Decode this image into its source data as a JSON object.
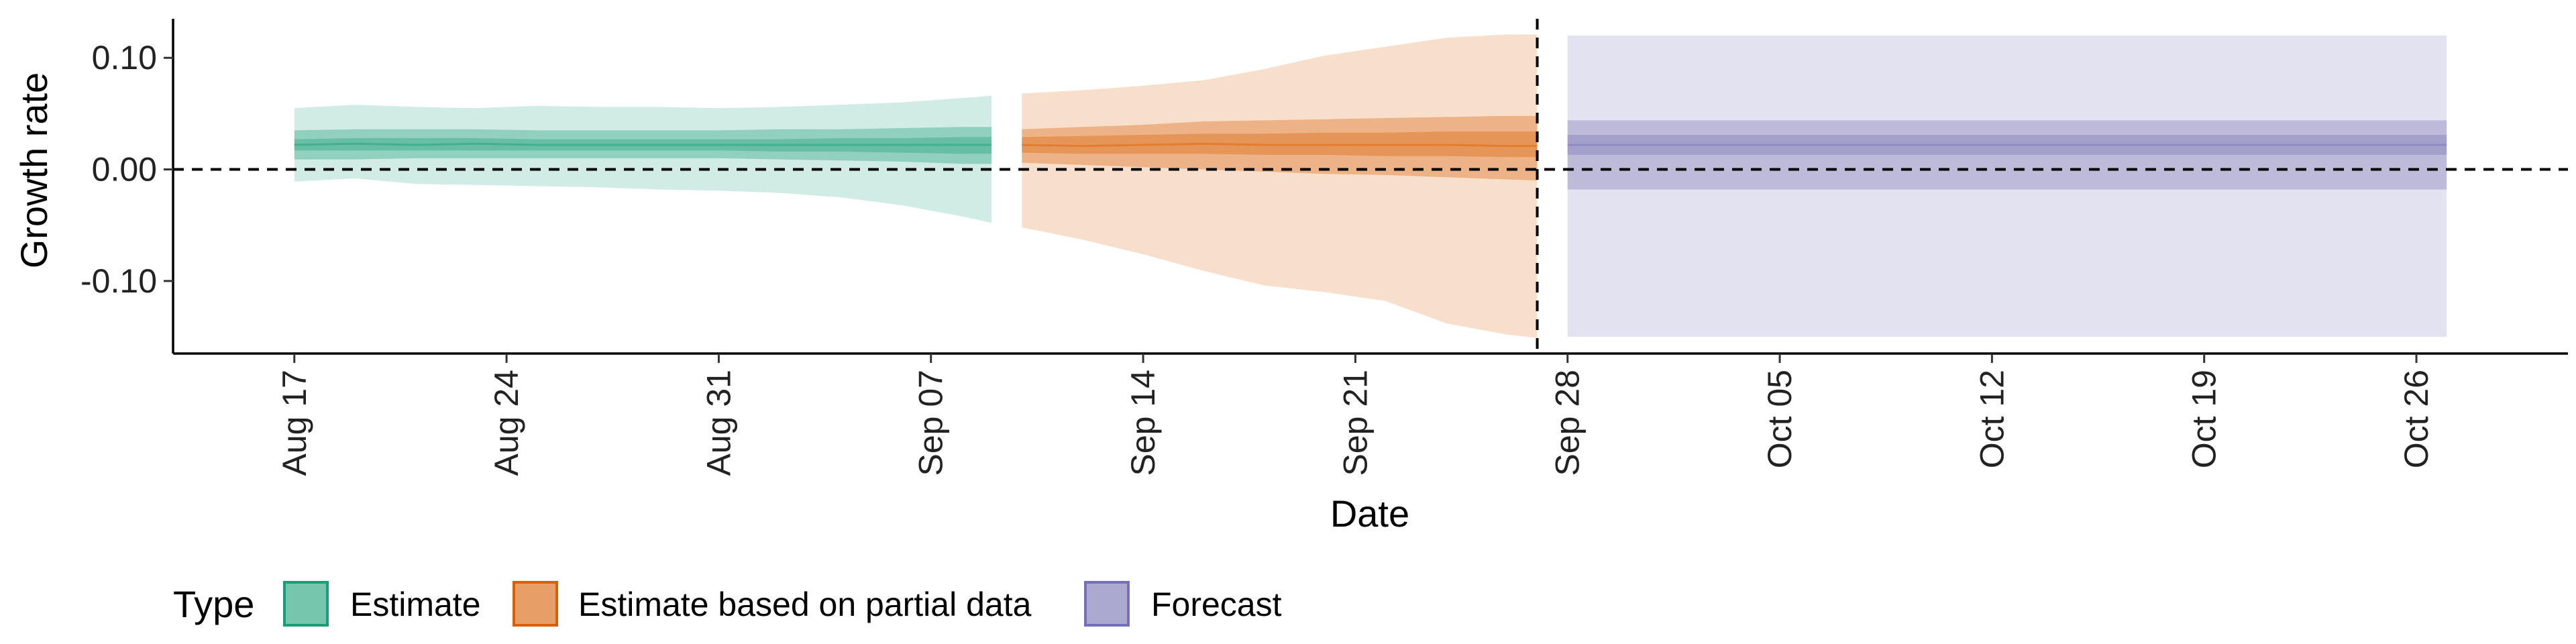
{
  "chart_data": {
    "type": "area",
    "xlabel": "Date",
    "ylabel": "Growth rate",
    "x_ticks": [
      "2020-08-17",
      "2020-08-24",
      "2020-08-31",
      "2020-09-07",
      "2020-09-14",
      "2020-09-21",
      "2020-09-28",
      "2020-10-05",
      "2020-10-12",
      "2020-10-19",
      "2020-10-26"
    ],
    "x_tick_labels": [
      "Aug 17",
      "Aug 24",
      "Aug 31",
      "Sep 07",
      "Sep 14",
      "Sep 21",
      "Sep 28",
      "Oct 05",
      "Oct 12",
      "Oct 19",
      "Oct 26"
    ],
    "y_ticks": [
      0.1,
      0.0,
      -0.1
    ],
    "y_tick_labels": [
      "0.10",
      "0.00",
      "-0.10"
    ],
    "xlim": [
      "2020-08-13",
      "2020-10-31"
    ],
    "ylim": [
      -0.165,
      0.135
    ],
    "hline_y": 0.0,
    "vline_x": "2020-09-27",
    "grid": false,
    "legend_title": "Type",
    "legend_position": "bottom-left",
    "series": [
      {
        "name": "Estimate",
        "color": "#1b9e77",
        "x": [
          "2020-08-17",
          "2020-08-19",
          "2020-08-21",
          "2020-08-23",
          "2020-08-25",
          "2020-08-27",
          "2020-08-29",
          "2020-08-31",
          "2020-09-02",
          "2020-09-04",
          "2020-09-06",
          "2020-09-08",
          "2020-09-09"
        ],
        "median": [
          0.022,
          0.023,
          0.022,
          0.023,
          0.022,
          0.022,
          0.022,
          0.022,
          0.022,
          0.022,
          0.022,
          0.022,
          0.022
        ],
        "inner_lower": [
          0.017,
          0.017,
          0.017,
          0.017,
          0.017,
          0.017,
          0.017,
          0.017,
          0.016,
          0.016,
          0.015,
          0.014,
          0.014
        ],
        "inner_upper": [
          0.027,
          0.028,
          0.028,
          0.028,
          0.027,
          0.027,
          0.027,
          0.027,
          0.027,
          0.028,
          0.028,
          0.029,
          0.029
        ],
        "mid_lower": [
          0.009,
          0.009,
          0.01,
          0.01,
          0.01,
          0.01,
          0.01,
          0.01,
          0.009,
          0.008,
          0.007,
          0.005,
          0.005
        ],
        "mid_upper": [
          0.035,
          0.036,
          0.036,
          0.036,
          0.035,
          0.035,
          0.035,
          0.035,
          0.036,
          0.036,
          0.037,
          0.038,
          0.038
        ],
        "outer_lower": [
          -0.011,
          -0.008,
          -0.013,
          -0.014,
          -0.015,
          -0.016,
          -0.018,
          -0.019,
          -0.021,
          -0.025,
          -0.032,
          -0.042,
          -0.048
        ],
        "outer_upper": [
          0.055,
          0.058,
          0.056,
          0.055,
          0.057,
          0.056,
          0.056,
          0.055,
          0.056,
          0.058,
          0.06,
          0.064,
          0.066
        ]
      },
      {
        "name": "Estimate based on partial data",
        "color": "#d95f02",
        "x": [
          "2020-09-10",
          "2020-09-12",
          "2020-09-14",
          "2020-09-16",
          "2020-09-18",
          "2020-09-20",
          "2020-09-22",
          "2020-09-24",
          "2020-09-26",
          "2020-09-27"
        ],
        "median": [
          0.022,
          0.021,
          0.022,
          0.023,
          0.022,
          0.022,
          0.022,
          0.022,
          0.021,
          0.021
        ],
        "inner_lower": [
          0.015,
          0.014,
          0.014,
          0.014,
          0.013,
          0.013,
          0.012,
          0.012,
          0.011,
          0.011
        ],
        "inner_upper": [
          0.029,
          0.03,
          0.031,
          0.032,
          0.032,
          0.033,
          0.033,
          0.034,
          0.034,
          0.034
        ],
        "mid_lower": [
          0.006,
          0.004,
          0.002,
          0.0,
          -0.002,
          -0.004,
          -0.005,
          -0.007,
          -0.009,
          -0.01
        ],
        "mid_upper": [
          0.036,
          0.038,
          0.04,
          0.043,
          0.044,
          0.045,
          0.046,
          0.047,
          0.048,
          0.048
        ],
        "outer_lower": [
          -0.052,
          -0.063,
          -0.076,
          -0.091,
          -0.104,
          -0.11,
          -0.118,
          -0.138,
          -0.148,
          -0.151
        ],
        "outer_upper": [
          0.068,
          0.071,
          0.075,
          0.08,
          0.09,
          0.102,
          0.11,
          0.118,
          0.121,
          0.121
        ]
      },
      {
        "name": "Forecast",
        "color": "#7570b3",
        "x": [
          "2020-09-28",
          "2020-10-27"
        ],
        "median": [
          0.022,
          0.022
        ],
        "inner_lower": [
          0.013,
          0.013
        ],
        "inner_upper": [
          0.031,
          0.031
        ],
        "mid_lower": [
          -0.018,
          -0.018
        ],
        "mid_upper": [
          0.044,
          0.044
        ],
        "outer_lower": [
          -0.15,
          -0.15
        ],
        "outer_upper": [
          0.12,
          0.12
        ]
      }
    ]
  }
}
